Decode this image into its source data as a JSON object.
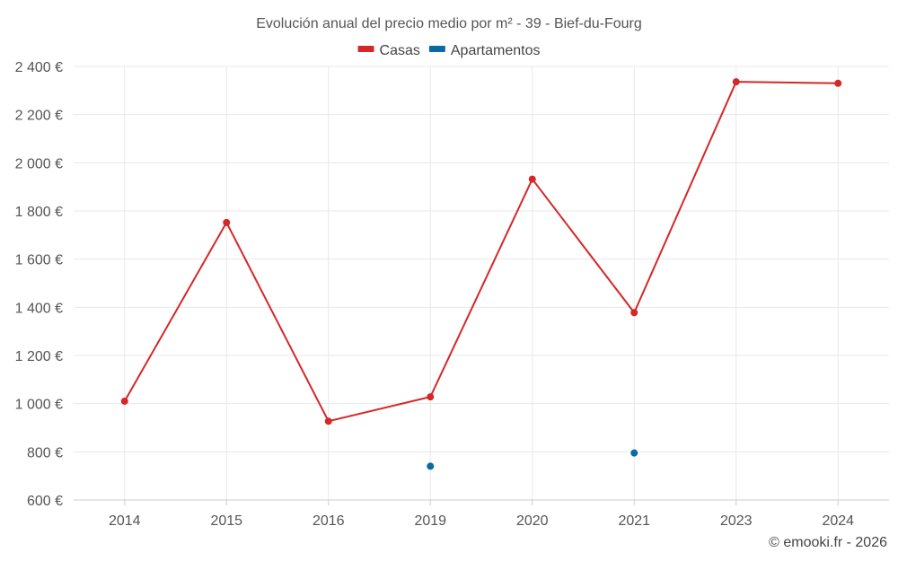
{
  "chart_data": {
    "type": "line",
    "title": "Evolución anual del precio medio por m² - 39 - Bief-du-Fourg",
    "categories": [
      "2014",
      "2015",
      "2016",
      "2019",
      "2020",
      "2021",
      "2023",
      "2024"
    ],
    "series": [
      {
        "name": "Casas",
        "color": "#d62728",
        "values": [
          1010,
          1752,
          927,
          1028,
          1932,
          1378,
          2336,
          2330
        ]
      },
      {
        "name": "Apartamentos",
        "color": "#0a6aa1",
        "values": [
          null,
          null,
          null,
          740,
          null,
          795,
          null,
          null
        ]
      }
    ],
    "ylim": [
      600,
      2400
    ],
    "yticks": [
      600,
      800,
      1000,
      1200,
      1400,
      1600,
      1800,
      2000,
      2200,
      2400
    ],
    "ytick_labels": [
      "600 €",
      "800 €",
      "1 000 €",
      "1 200 €",
      "1 400 €",
      "1 600 €",
      "1 800 €",
      "2 000 €",
      "2 200 €",
      "2 400 €"
    ],
    "grid": true,
    "legend": "top-center"
  },
  "credit": "© emooki.fr - 2026"
}
